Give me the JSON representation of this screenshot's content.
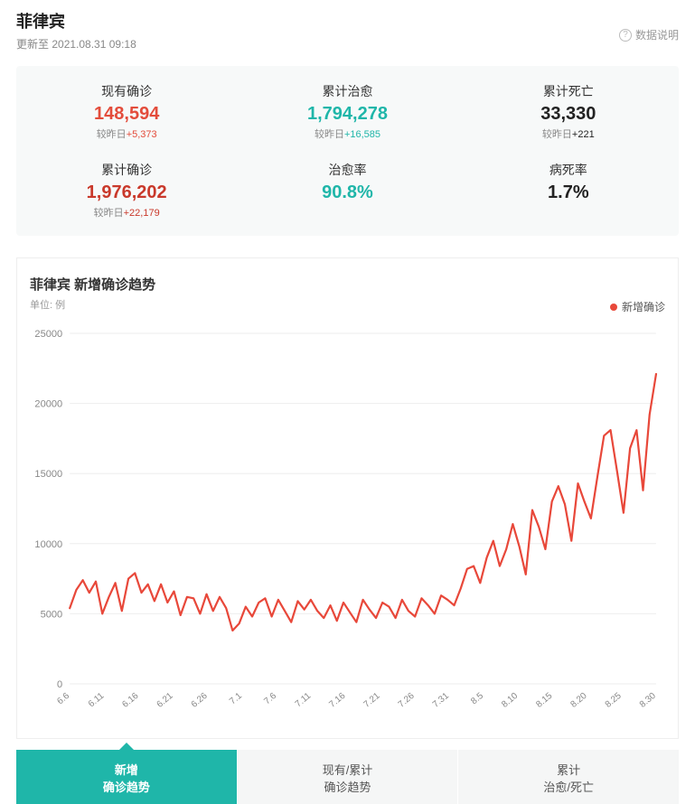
{
  "header": {
    "title": "菲律宾",
    "updated_prefix": "更新至 ",
    "updated_time": "2021.08.31 09:18",
    "help_label": "数据说明"
  },
  "stats": [
    {
      "label": "现有确诊",
      "value": "148,594",
      "delta_prefix": "较昨日",
      "delta": "+5,373",
      "value_color": "#e34c3b",
      "delta_color": "#e34c3b"
    },
    {
      "label": "累计治愈",
      "value": "1,794,278",
      "delta_prefix": "较昨日",
      "delta": "+16,585",
      "value_color": "#1fb6a9",
      "delta_color": "#1fb6a9"
    },
    {
      "label": "累计死亡",
      "value": "33,330",
      "delta_prefix": "较昨日",
      "delta": "+221",
      "value_color": "#222222",
      "delta_color": "#222222"
    },
    {
      "label": "累计确诊",
      "value": "1,976,202",
      "delta_prefix": "较昨日",
      "delta": "+22,179",
      "value_color": "#c9392b",
      "delta_color": "#c9392b"
    },
    {
      "label": "治愈率",
      "value": "90.8%",
      "delta_prefix": "",
      "delta": "",
      "value_color": "#1fb6a9",
      "delta_color": "#1fb6a9"
    },
    {
      "label": "病死率",
      "value": "1.7%",
      "delta_prefix": "",
      "delta": "",
      "value_color": "#222222",
      "delta_color": "#222222"
    }
  ],
  "chart": {
    "type": "line",
    "title": "菲律宾 新增确诊趋势",
    "unit_label": "单位: 例",
    "legend_label": "新增确诊",
    "series_color": "#e8483a",
    "background_color": "#ffffff",
    "grid_color": "#eeeeee",
    "axis_text_color": "#888888",
    "line_width": 2.2,
    "ylim": [
      0,
      25000
    ],
    "ytick_step": 5000,
    "yticks": [
      0,
      5000,
      10000,
      15000,
      20000,
      25000
    ],
    "x_labels": [
      "6.6",
      "6.11",
      "6.16",
      "6.21",
      "6.26",
      "7.1",
      "7.6",
      "7.11",
      "7.16",
      "7.21",
      "7.26",
      "7.31",
      "8.5",
      "8.10",
      "8.15",
      "8.20",
      "8.25",
      "8.30"
    ],
    "x_tick_rotation": -40,
    "values": [
      5400,
      6700,
      7400,
      6500,
      7300,
      5000,
      6200,
      7200,
      5200,
      7500,
      7900,
      6500,
      7100,
      5900,
      7100,
      5800,
      6600,
      4900,
      6200,
      6100,
      5000,
      6400,
      5200,
      6200,
      5400,
      3800,
      4300,
      5500,
      4800,
      5800,
      6100,
      4800,
      6000,
      5200,
      4400,
      5900,
      5300,
      6000,
      5200,
      4700,
      5600,
      4500,
      5800,
      5100,
      4400,
      6000,
      5300,
      4700,
      5800,
      5500,
      4700,
      6000,
      5200,
      4800,
      6100,
      5600,
      5000,
      6300,
      6000,
      5600,
      6800,
      8200,
      8400,
      7200,
      9000,
      10200,
      8400,
      9600,
      11400,
      9800,
      7800,
      12400,
      11200,
      9600,
      13000,
      14100,
      12800,
      10200,
      14300,
      13000,
      11800,
      14800,
      17700,
      18100,
      15200,
      12200,
      16800,
      18100,
      13800,
      19200,
      22100
    ],
    "title_fontsize": 15,
    "label_fontsize": 11
  },
  "tabs": [
    {
      "line1": "新增",
      "line2": "确诊趋势",
      "active": true
    },
    {
      "line1": "现有/累计",
      "line2": "确诊趋势",
      "active": false
    },
    {
      "line1": "累计",
      "line2": "治愈/死亡",
      "active": false
    }
  ]
}
